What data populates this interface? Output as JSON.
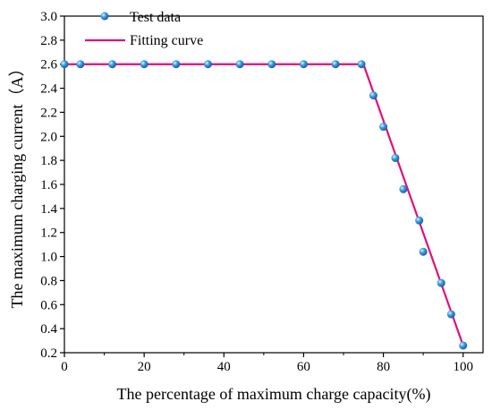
{
  "chart_data": {
    "type": "scatter",
    "title": "",
    "xlabel": "The percentage of maximum charge capacity(%)",
    "ylabel": "The maximum charging current（A）",
    "xlim": [
      0,
      105
    ],
    "ylim": [
      0.2,
      3.0
    ],
    "xticks": [
      "0",
      "20",
      "40",
      "60",
      "80",
      "100"
    ],
    "yticks": [
      "0.2",
      "0.4",
      "0.6",
      "0.8",
      "1.0",
      "1.2",
      "1.4",
      "1.6",
      "1.8",
      "2.0",
      "2.2",
      "2.4",
      "2.6",
      "2.8",
      "3.0"
    ],
    "legend_position": "top-left",
    "series": [
      {
        "name": "Test data",
        "kind": "scatter",
        "color": "#3a9ad9",
        "x": [
          0,
          4,
          12,
          20,
          28,
          36,
          44,
          52,
          60,
          68,
          74.5,
          77.5,
          80,
          83,
          85,
          89,
          90,
          94.5,
          97,
          100
        ],
        "y": [
          2.6,
          2.6,
          2.6,
          2.6,
          2.6,
          2.6,
          2.6,
          2.6,
          2.6,
          2.6,
          2.6,
          2.34,
          2.08,
          1.82,
          1.56,
          1.3,
          1.04,
          0.78,
          0.52,
          0.26
        ]
      },
      {
        "name": "Fitting curve",
        "kind": "line",
        "color": "#e0107a",
        "x": [
          0,
          75,
          100
        ],
        "y": [
          2.6,
          2.6,
          0.26
        ]
      }
    ]
  }
}
